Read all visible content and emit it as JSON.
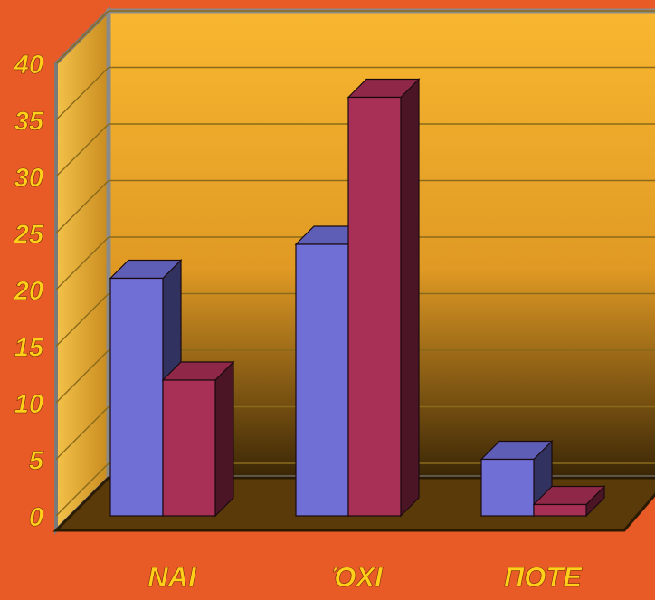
{
  "chart_data": {
    "type": "bar",
    "categories": [
      "NAI",
      "ΌΧΙ",
      "ΠΟΤΕ"
    ],
    "series": [
      {
        "values": [
          21,
          24,
          5
        ]
      },
      {
        "values": [
          12,
          37,
          1
        ]
      }
    ],
    "y_ticks": [
      "0",
      "5",
      "10",
      "15",
      "20",
      "25",
      "30",
      "35",
      "40"
    ],
    "ylim": [
      0,
      40
    ],
    "grid": true,
    "style_3d": true,
    "colors": {
      "page_background": "#e85a26",
      "wall": "#f5b12e",
      "wall_dark": "#3a2606",
      "floor": "#5a3a08",
      "series_1": "#6f6fd6",
      "series_2": "#a82f55",
      "tick_text": "#ffcf1a"
    }
  }
}
